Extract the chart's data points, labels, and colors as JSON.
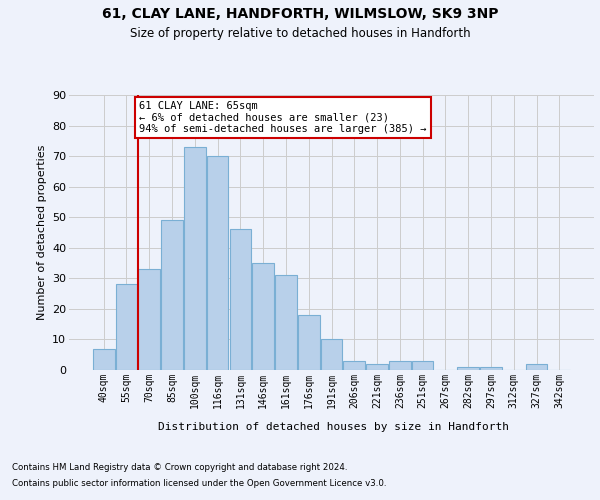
{
  "title1": "61, CLAY LANE, HANDFORTH, WILMSLOW, SK9 3NP",
  "title2": "Size of property relative to detached houses in Handforth",
  "xlabel": "Distribution of detached houses by size in Handforth",
  "ylabel": "Number of detached properties",
  "categories": [
    "40sqm",
    "55sqm",
    "70sqm",
    "85sqm",
    "100sqm",
    "116sqm",
    "131sqm",
    "146sqm",
    "161sqm",
    "176sqm",
    "191sqm",
    "206sqm",
    "221sqm",
    "236sqm",
    "251sqm",
    "267sqm",
    "282sqm",
    "297sqm",
    "312sqm",
    "327sqm",
    "342sqm"
  ],
  "values": [
    7,
    28,
    33,
    49,
    73,
    70,
    46,
    35,
    31,
    18,
    10,
    3,
    2,
    3,
    3,
    0,
    1,
    1,
    0,
    2,
    0
  ],
  "bar_color": "#b8d0ea",
  "bar_edge_color": "#7aafd4",
  "grid_color": "#cccccc",
  "vline_x": 1.5,
  "vline_color": "#cc0000",
  "annotation_text": "61 CLAY LANE: 65sqm\n← 6% of detached houses are smaller (23)\n94% of semi-detached houses are larger (385) →",
  "annotation_box_color": "#ffffff",
  "annotation_box_edge": "#cc0000",
  "ylim": [
    0,
    90
  ],
  "yticks": [
    0,
    10,
    20,
    30,
    40,
    50,
    60,
    70,
    80,
    90
  ],
  "footer1": "Contains HM Land Registry data © Crown copyright and database right 2024.",
  "footer2": "Contains public sector information licensed under the Open Government Licence v3.0.",
  "bg_color": "#eef2fb"
}
